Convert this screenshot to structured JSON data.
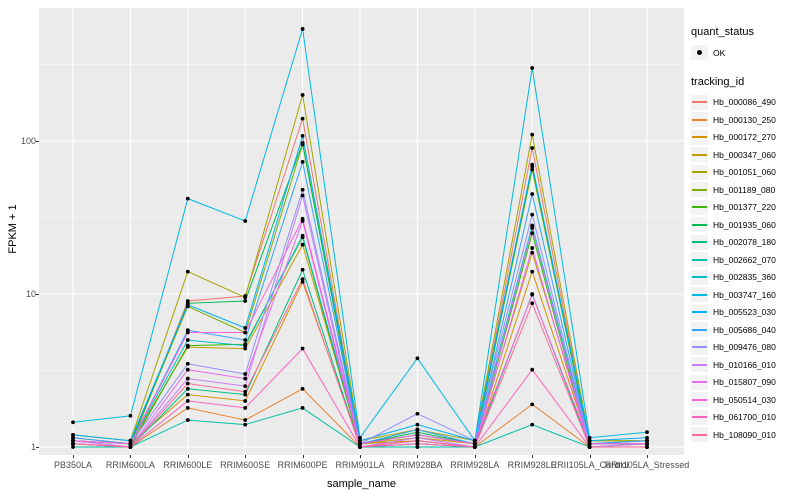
{
  "chart_data": {
    "type": "line",
    "title": "",
    "xlabel": "sample_name",
    "ylabel": "FPKM + 1",
    "yscale": "log10",
    "ylim": [
      1,
      700
    ],
    "yticks": [
      1,
      10,
      100
    ],
    "ytick_labels": [
      "1",
      "10",
      "100"
    ],
    "grid": "major-and-minor-white-on-gray",
    "legend_position": "right",
    "point_color": "#000000",
    "x": [
      "PB350LA",
      "RRIM600LA",
      "RRIM600LE",
      "RRIM600SE",
      "RRIM600PE",
      "RRIM901LA",
      "RRIM928BA",
      "RRIM928LA",
      "RRIM928LE",
      "RRII105LA_Control",
      "RRII105LA_Stressed"
    ],
    "series": [
      {
        "name": "Hb_000086_490",
        "color": "#F8766D",
        "values": [
          1.1,
          1.0,
          9.0,
          9.7,
          140,
          1.05,
          1.2,
          1.05,
          90,
          1.05,
          1.1
        ]
      },
      {
        "name": "Hb_000130_250",
        "color": "#EA8331",
        "values": [
          1.05,
          1.0,
          1.8,
          1.5,
          2.4,
          1.0,
          1.0,
          1.0,
          1.9,
          1.0,
          1.0
        ]
      },
      {
        "name": "Hb_000172_270",
        "color": "#D89000",
        "values": [
          1.1,
          1.05,
          2.2,
          2.0,
          12,
          1.05,
          1.1,
          1.0,
          14,
          1.05,
          1.05
        ]
      },
      {
        "name": "Hb_000347_060",
        "color": "#C09B00",
        "values": [
          1.15,
          1.05,
          4.5,
          4.4,
          21,
          1.05,
          1.15,
          1.05,
          18.6,
          1.1,
          1.1
        ]
      },
      {
        "name": "Hb_001051_060",
        "color": "#A3A500",
        "values": [
          1.2,
          1.1,
          14,
          9.5,
          200,
          1.1,
          1.3,
          1.1,
          110,
          1.1,
          1.1
        ]
      },
      {
        "name": "Hb_001189_080",
        "color": "#7CAE00",
        "values": [
          1.1,
          1.05,
          8.3,
          5.6,
          95,
          1.05,
          1.2,
          1.05,
          65,
          1.05,
          1.05
        ]
      },
      {
        "name": "Hb_001377_220",
        "color": "#39B600",
        "values": [
          1.05,
          1.0,
          4.6,
          4.7,
          23.5,
          1.0,
          1.1,
          1.0,
          25,
          1.0,
          1.05
        ]
      },
      {
        "name": "Hb_001935_060",
        "color": "#00BB4E",
        "values": [
          1.1,
          1.05,
          8.7,
          9.0,
          97,
          1.05,
          1.25,
          1.05,
          68,
          1.05,
          1.05
        ]
      },
      {
        "name": "Hb_002078_180",
        "color": "#00BF7D",
        "values": [
          1.05,
          1.0,
          2.4,
          2.2,
          14.4,
          1.0,
          1.05,
          1.0,
          10,
          1.0,
          1.0
        ]
      },
      {
        "name": "Hb_002662_070",
        "color": "#00C1A3",
        "values": [
          1.0,
          1.0,
          1.5,
          1.4,
          1.8,
          1.0,
          1.0,
          1.0,
          1.4,
          1.0,
          1.0
        ]
      },
      {
        "name": "Hb_002835_360",
        "color": "#00BFC4",
        "values": [
          1.1,
          1.05,
          5.0,
          4.6,
          24,
          1.05,
          1.2,
          1.05,
          28,
          1.05,
          1.1
        ]
      },
      {
        "name": "Hb_003747_160",
        "color": "#00BAE0",
        "values": [
          1.45,
          1.6,
          42,
          30,
          540,
          1.15,
          3.8,
          1.1,
          300,
          1.15,
          1.25
        ]
      },
      {
        "name": "Hb_005523_030",
        "color": "#00B0F6",
        "values": [
          1.2,
          1.1,
          8.5,
          6.0,
          108,
          1.1,
          1.4,
          1.1,
          70,
          1.1,
          1.15
        ]
      },
      {
        "name": "Hb_005686_040",
        "color": "#35A2FF",
        "values": [
          1.15,
          1.05,
          5.8,
          5.0,
          73,
          1.05,
          1.3,
          1.05,
          45,
          1.05,
          1.1
        ]
      },
      {
        "name": "Hb_009476_080",
        "color": "#9590FF",
        "values": [
          1.1,
          1.05,
          3.5,
          3.0,
          48,
          1.05,
          1.65,
          1.1,
          33,
          1.05,
          1.05
        ]
      },
      {
        "name": "Hb_010166_010",
        "color": "#C77CFF",
        "values": [
          1.1,
          1.0,
          2.8,
          2.5,
          44,
          1.0,
          1.15,
          1.0,
          27,
          1.0,
          1.05
        ]
      },
      {
        "name": "Hb_015807_090",
        "color": "#E76BF3",
        "values": [
          1.05,
          1.0,
          3.2,
          2.8,
          30,
          1.0,
          1.1,
          1.0,
          20,
          1.0,
          1.0
        ]
      },
      {
        "name": "Hb_050514_030",
        "color": "#FA62DB",
        "values": [
          1.1,
          1.05,
          5.6,
          5.6,
          31,
          1.05,
          1.2,
          1.05,
          9.9,
          1.05,
          1.05
        ]
      },
      {
        "name": "Hb_061700_010",
        "color": "#FF62BC",
        "values": [
          1.05,
          1.0,
          2.0,
          1.8,
          4.4,
          1.0,
          1.05,
          1.0,
          3.2,
          1.0,
          1.0
        ]
      },
      {
        "name": "Hb_108090_010",
        "color": "#FF6A98",
        "values": [
          1.05,
          1.0,
          2.6,
          2.3,
          12.5,
          1.0,
          1.1,
          1.0,
          8.7,
          1.0,
          1.0
        ]
      }
    ],
    "legend": {
      "quant_status_title": "quant_status",
      "quant_status_items": [
        "OK"
      ],
      "tracking_id_title": "tracking_id"
    }
  },
  "colors": {
    "panel_background": "#EBEBEB",
    "gridline": "#FFFFFF",
    "tick_label": "#4D4D4D",
    "legend_key_background": "#F3F3F3",
    "point": "#000000"
  }
}
